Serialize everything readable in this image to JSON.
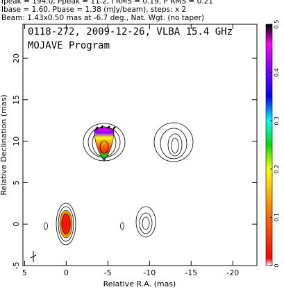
{
  "chart_data": {
    "type": "contour",
    "header": [
      "Ipeak = 194.0, Ppeak = 11.2, I RMS = 0.19, P RMS = 0.21",
      "Ibase = 1.60, Pbase = 1.38 (mJy/beam), steps: x 2",
      "Beam: 1.43x0.50 mas at -6.7 deg., Nat. Wgt. (no taper)"
    ],
    "title": "0118-272, 2009-12-26, VLBA 15.4 GHz",
    "subtitle": "MOJAVE Program",
    "xlabel": "Relative R.A. (mas)",
    "ylabel": "Relative Declination (mas)",
    "xlim": [
      5.2,
      -22.9
    ],
    "xticks": [
      5,
      0,
      -5,
      -10,
      -15,
      -20
    ],
    "ylim": [
      -5,
      24.1
    ],
    "yticks": [
      -5,
      0,
      5,
      10,
      15,
      20
    ],
    "colorbar": {
      "lim": [
        0,
        0.5
      ],
      "ticks": [
        0,
        0.1,
        0.2,
        0.3,
        0.4,
        0.5
      ]
    }
  }
}
